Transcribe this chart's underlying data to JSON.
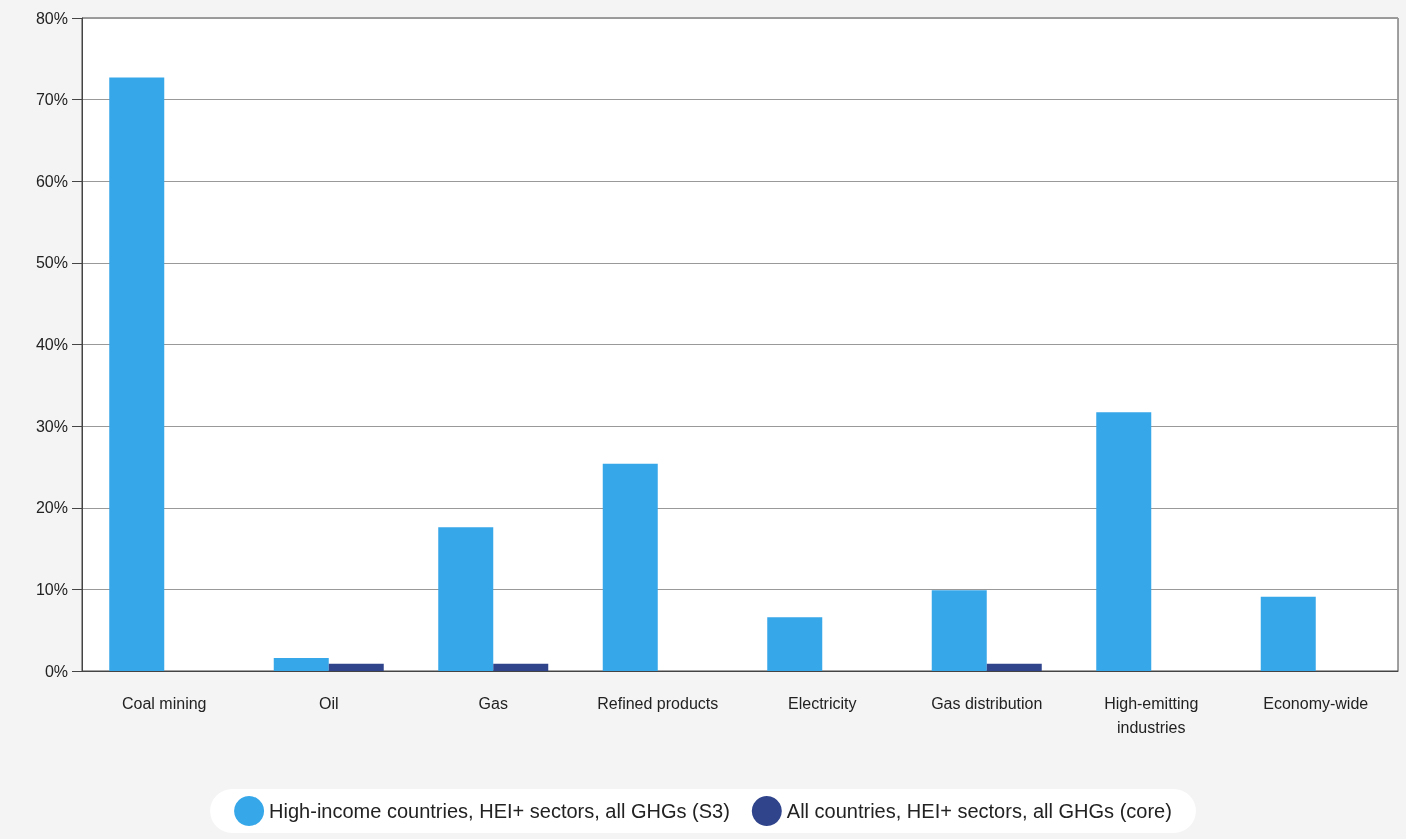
{
  "chart_data": {
    "type": "bar",
    "categories": [
      "Coal mining",
      "Oil",
      "Gas",
      "Refined products",
      "Electricity",
      "Gas distribution",
      "High-emitting\nindustries",
      "Economy-wide"
    ],
    "series": [
      {
        "name": "High-income countries, HEI+ sectors, all GHGs (S3)",
        "color": "#36a7e9",
        "values": [
          72.7,
          1.6,
          17.6,
          25.4,
          6.6,
          9.9,
          31.7,
          9.1
        ]
      },
      {
        "name": "All countries, HEI+ sectors, all GHGs (core)",
        "color": "#30448c",
        "values": [
          0,
          0.9,
          0.9,
          0,
          0,
          0.9,
          0,
          0
        ]
      }
    ],
    "ylim": [
      0,
      80
    ],
    "yticks": [
      {
        "value": 0,
        "label": "0%"
      },
      {
        "value": 10,
        "label": "10%"
      },
      {
        "value": 20,
        "label": "20%"
      },
      {
        "value": 30,
        "label": "30%"
      },
      {
        "value": 40,
        "label": "40%"
      },
      {
        "value": 50,
        "label": "50%"
      },
      {
        "value": 60,
        "label": "60%"
      },
      {
        "value": 70,
        "label": "70%"
      },
      {
        "value": 80,
        "label": "80%"
      }
    ],
    "grid": "y",
    "legend": "bottom"
  }
}
